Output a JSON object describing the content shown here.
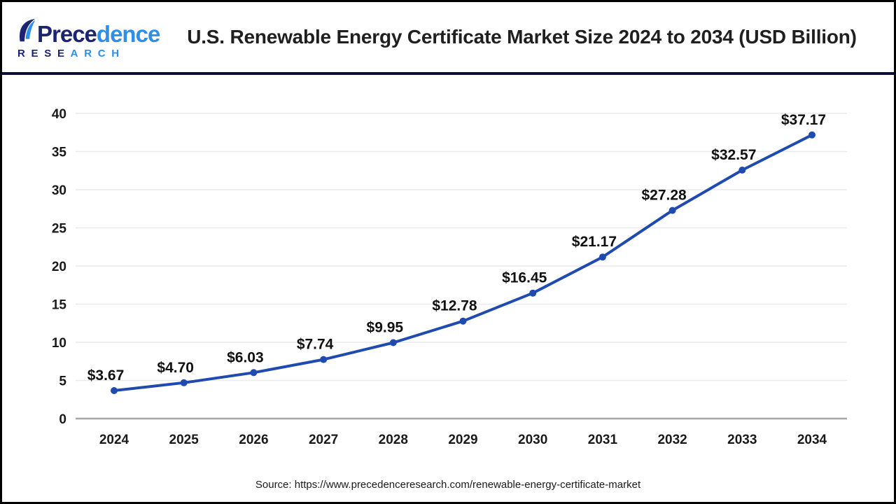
{
  "header": {
    "logo": {
      "word_dark": "Prece",
      "word_light": "dence",
      "sub_dark": "RESE",
      "sub_light": "ARCH"
    },
    "title": "U.S. Renewable Energy Certificate Market Size 2024 to 2034 (USD Billion)"
  },
  "chart_data": {
    "type": "line",
    "title": "U.S. Renewable Energy Certificate Market Size 2024 to 2034 (USD Billion)",
    "categories": [
      "2024",
      "2025",
      "2026",
      "2027",
      "2028",
      "2029",
      "2030",
      "2031",
      "2032",
      "2033",
      "2034"
    ],
    "values": [
      3.67,
      4.7,
      6.03,
      7.74,
      9.95,
      12.78,
      16.45,
      21.17,
      27.28,
      32.57,
      37.17
    ],
    "point_labels": [
      "$3.67",
      "$4.70",
      "$6.03",
      "$7.74",
      "$9.95",
      "$12.78",
      "$16.45",
      "$21.17",
      "$27.28",
      "$32.57",
      "$37.17"
    ],
    "xlabel": "",
    "ylabel": "",
    "ylim": [
      0,
      40
    ],
    "yticks": [
      0,
      5,
      10,
      15,
      20,
      25,
      30,
      35,
      40
    ],
    "grid": true,
    "legend": "none",
    "colors": {
      "line": "#1f4bb0",
      "marker": "#1f4bb0",
      "grid": "#eaeaea",
      "axis": "#a6a6a6",
      "data_label": "#111111",
      "tick_label": "#1a1a1a"
    }
  },
  "footer": {
    "source": "Source: https://www.precedenceresearch.com/renewable-energy-certificate-market"
  },
  "colors": {
    "header_rule": "#0d0d3d",
    "page_border": "#000000",
    "logo_dark": "#1b2470",
    "logo_light": "#2e8fe8"
  }
}
